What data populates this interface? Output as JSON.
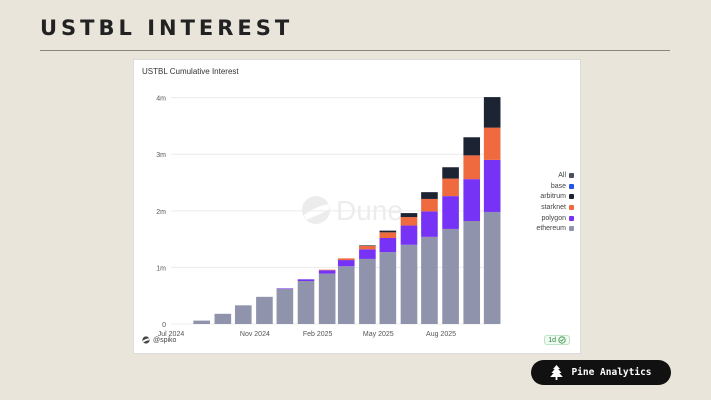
{
  "slide": {
    "title": "USTBL INTEREST",
    "brand": "Pine Analytics"
  },
  "card": {
    "title": "USTBL Cumulative Interest",
    "author": "@spiko",
    "refresh": "1d",
    "watermark": "Dune"
  },
  "colors": {
    "ethereum": "#8f93ab",
    "polygon": "#7733f5",
    "starknet": "#ef6a3f",
    "arbitrum": "#1c2433",
    "base": "#2255e8",
    "all": "#4a5060"
  },
  "chart_data": {
    "type": "bar",
    "title": "USTBL Cumulative Interest",
    "stacked": true,
    "x_ticks": [
      "Jul 2024",
      "Nov 2024",
      "Feb 2025",
      "May 2025",
      "Aug 2025"
    ],
    "x_tick_dates": [
      "2024-07-01",
      "2024-11-01",
      "2025-02-01",
      "2025-05-01",
      "2025-08-01"
    ],
    "x_range": [
      "2024-07-01",
      "2025-10-25"
    ],
    "y_ticks": [
      "0",
      "1m",
      "2m",
      "3m",
      "4m"
    ],
    "ylim": [
      0,
      4100000
    ],
    "grid": "horizontal",
    "legend_position": "right",
    "legend": [
      "All",
      "base",
      "arbitrum",
      "starknet",
      "polygon",
      "ethereum"
    ],
    "dates": [
      "2024-07-15",
      "2024-08-15",
      "2024-09-15",
      "2024-10-15",
      "2024-11-15",
      "2024-12-15",
      "2025-01-15",
      "2025-02-15",
      "2025-03-15",
      "2025-04-15",
      "2025-05-15",
      "2025-06-15",
      "2025-07-15",
      "2025-08-15",
      "2025-09-15",
      "2025-10-15"
    ],
    "series": [
      {
        "name": "ethereum",
        "values": [
          0,
          60000,
          180000,
          330000,
          480000,
          620000,
          760000,
          890000,
          1020000,
          1150000,
          1270000,
          1400000,
          1540000,
          1680000,
          1820000,
          1980000
        ]
      },
      {
        "name": "polygon",
        "values": [
          0,
          0,
          0,
          0,
          0,
          10000,
          30000,
          60000,
          110000,
          170000,
          250000,
          340000,
          450000,
          580000,
          740000,
          920000
        ]
      },
      {
        "name": "starknet",
        "values": [
          0,
          0,
          0,
          0,
          0,
          0,
          0,
          10000,
          30000,
          60000,
          100000,
          150000,
          220000,
          310000,
          420000,
          570000
        ]
      },
      {
        "name": "arbitrum",
        "values": [
          0,
          0,
          0,
          0,
          0,
          0,
          0,
          0,
          0,
          10000,
          30000,
          70000,
          120000,
          200000,
          320000,
          540000
        ]
      },
      {
        "name": "base",
        "values": [
          0,
          0,
          0,
          0,
          0,
          0,
          0,
          0,
          0,
          0,
          0,
          0,
          0,
          0,
          0,
          0
        ]
      }
    ]
  }
}
